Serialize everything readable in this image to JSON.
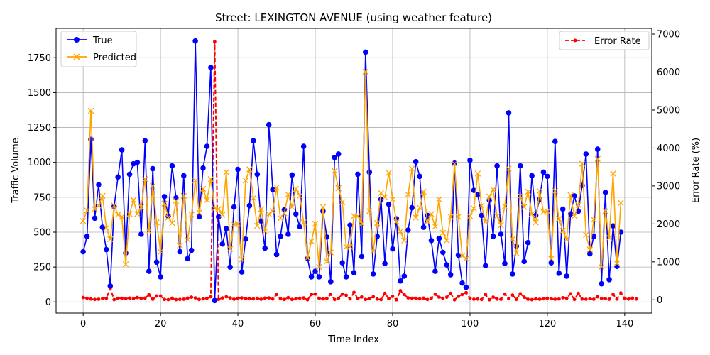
{
  "chart_data": {
    "type": "line",
    "title": "Street: LEXINGTON AVENUE (using weather feature)",
    "xlabel": "Time Index",
    "ylabel": "Traffic Volume",
    "y2label": "Error Rate (%)",
    "xlim": [
      -7,
      147
    ],
    "ylim": [
      -80,
      1960
    ],
    "y2lim": [
      -350,
      7150
    ],
    "xticks": [
      0,
      20,
      40,
      60,
      80,
      100,
      120,
      140
    ],
    "yticks": [
      0,
      250,
      500,
      750,
      1000,
      1250,
      1500,
      1750
    ],
    "y2ticks": [
      0,
      1000,
      2000,
      3000,
      4000,
      5000,
      6000,
      7000
    ],
    "grid": true,
    "legend_left_position": "upper left",
    "legend_right_position": "upper right",
    "series": [
      {
        "name": "True",
        "axis": "left",
        "color": "#0000ff",
        "marker": "circle",
        "values": [
          360,
          470,
          1165,
          600,
          840,
          535,
          375,
          115,
          685,
          895,
          1090,
          350,
          915,
          990,
          1000,
          485,
          1155,
          220,
          955,
          285,
          180,
          755,
          615,
          975,
          745,
          360,
          905,
          310,
          370,
          1870,
          610,
          960,
          1115,
          1680,
          10,
          610,
          415,
          525,
          250,
          680,
          950,
          215,
          450,
          690,
          1155,
          915,
          580,
          385,
          1270,
          805,
          340,
          470,
          660,
          485,
          910,
          630,
          540,
          1115,
          310,
          180,
          220,
          180,
          650,
          465,
          145,
          1035,
          1060,
          280,
          180,
          550,
          210,
          915,
          325,
          1790,
          930,
          200,
          470,
          735,
          275,
          700,
          380,
          595,
          150,
          185,
          515,
          675,
          1005,
          900,
          535,
          620,
          440,
          220,
          455,
          355,
          265,
          195,
          995,
          335,
          135,
          105,
          1015,
          800,
          770,
          620,
          260,
          730,
          470,
          975,
          485,
          275,
          1355,
          200,
          400,
          975,
          290,
          425,
          905,
          620,
          735,
          930,
          900,
          280,
          1150,
          205,
          665,
          185,
          630,
          760,
          650,
          835,
          1060,
          345,
          470,
          1095,
          130,
          785,
          160,
          545,
          255,
          500
        ]
      },
      {
        "name": "Predicted",
        "axis": "left",
        "color": "#ffa500",
        "marker": "x",
        "values": [
          580,
          655,
          1370,
          665,
          690,
          760,
          530,
          450,
          690,
          625,
          610,
          270,
          630,
          730,
          630,
          680,
          880,
          505,
          830,
          570,
          360,
          705,
          605,
          565,
          725,
          405,
          760,
          445,
          625,
          870,
          640,
          810,
          730,
          880,
          670,
          665,
          625,
          930,
          380,
          555,
          560,
          305,
          870,
          950,
          745,
          545,
          665,
          505,
          630,
          650,
          820,
          600,
          635,
          770,
          680,
          810,
          760,
          570,
          315,
          435,
          560,
          250,
          680,
          290,
          355,
          940,
          815,
          715,
          395,
          395,
          615,
          615,
          560,
          1650,
          650,
          365,
          565,
          780,
          750,
          925,
          735,
          575,
          505,
          440,
          770,
          955,
          605,
          675,
          790,
          575,
          630,
          540,
          735,
          495,
          440,
          610,
          990,
          610,
          330,
          310,
          615,
          670,
          920,
          690,
          575,
          755,
          805,
          615,
          550,
          685,
          955,
          450,
          350,
          760,
          680,
          790,
          630,
          570,
          795,
          645,
          650,
          310,
          795,
          595,
          510,
          450,
          765,
          615,
          695,
          990,
          480,
          375,
          590,
          1025,
          250,
          650,
          460,
          920,
          275,
          710
        ]
      },
      {
        "name": "Error Rate",
        "axis": "right",
        "color": "#ff0000",
        "marker": "dot",
        "dashed": true,
        "values": [
          60,
          40,
          20,
          10,
          15,
          35,
          40,
          300,
          5,
          40,
          40,
          30,
          45,
          30,
          60,
          35,
          45,
          130,
          15,
          100,
          100,
          10,
          5,
          42,
          5,
          12,
          15,
          45,
          70,
          50,
          10,
          25,
          40,
          80,
          6800,
          10,
          50,
          80,
          50,
          15,
          40,
          50,
          30,
          30,
          25,
          40,
          15,
          45,
          50,
          20,
          140,
          27,
          10,
          58,
          10,
          28,
          43,
          50,
          2,
          140,
          150,
          40,
          25,
          38,
          145,
          10,
          40,
          150,
          120,
          25,
          195,
          30,
          75,
          10,
          30,
          80,
          20,
          6,
          170,
          32,
          90,
          3,
          240,
          140,
          50,
          40,
          40,
          25,
          45,
          8,
          43,
          145,
          70,
          40,
          70,
          170,
          1,
          90,
          140,
          190,
          40,
          15,
          20,
          10,
          140,
          3,
          70,
          20,
          13,
          150,
          30,
          125,
          12,
          160,
          70,
          14,
          5,
          25,
          15,
          28,
          40,
          30,
          15,
          20,
          55,
          40,
          160,
          10,
          170,
          20,
          15,
          30,
          15,
          80,
          35,
          30,
          15,
          140,
          20,
          180,
          40,
          20,
          45,
          20
        ]
      }
    ]
  }
}
